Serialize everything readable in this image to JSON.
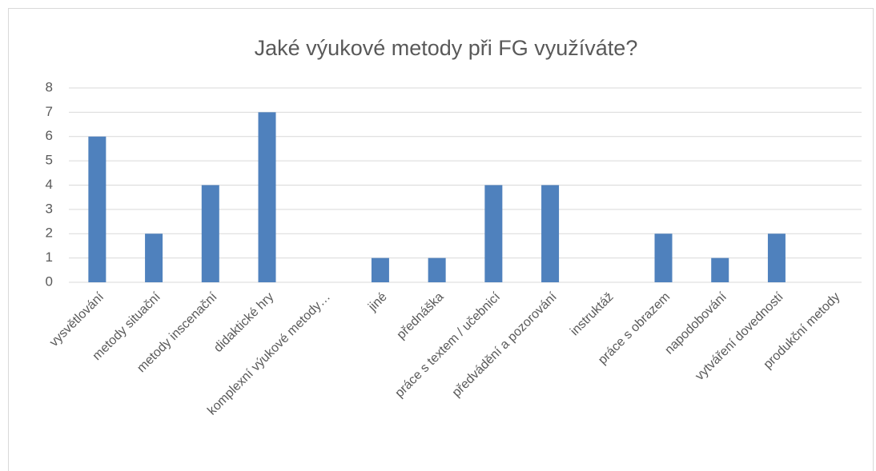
{
  "chart_data": {
    "type": "bar",
    "title": "Jaké výukové metody při FG využíváte?",
    "categories": [
      "vysvětlování",
      "metody situační",
      "metody inscenační",
      "didaktické hry",
      "komplexní výukové metody…",
      "jiné",
      "přednáška",
      "práce s textem / učebnicí",
      "předvádění a pozorování",
      "instruktáž",
      "práce s obrazem",
      "napodobování",
      "vytváření dovedností",
      "produkční metody"
    ],
    "values": [
      6,
      2,
      4,
      7,
      0,
      1,
      1,
      4,
      4,
      0,
      2,
      1,
      2,
      0
    ],
    "color": "#4f81bd",
    "ylim": [
      0,
      8
    ],
    "yticks": [
      0,
      1,
      2,
      3,
      4,
      5,
      6,
      7,
      8
    ],
    "grid": true
  }
}
